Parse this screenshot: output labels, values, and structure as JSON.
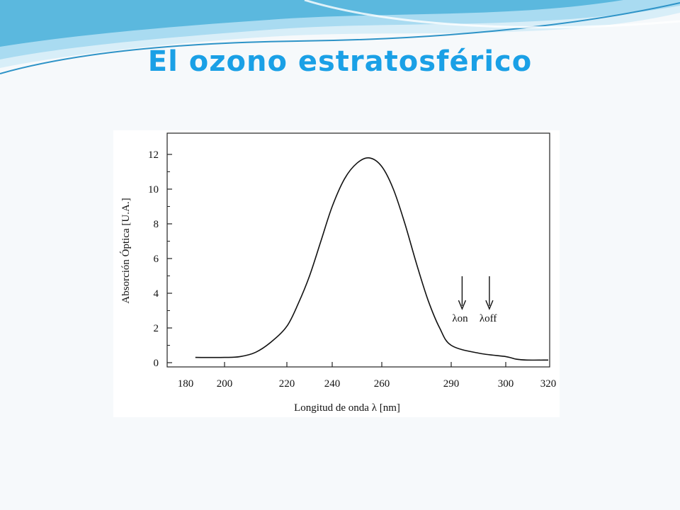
{
  "slide": {
    "title": "El ozono estratosférico",
    "title_color": "#1aa0e6",
    "background_color": "#f6f9fb",
    "wave_colors": [
      "#d8eef8",
      "#a9dbf1",
      "#5bb8de",
      "#2d93c7"
    ]
  },
  "chart_data": {
    "type": "line",
    "title": "",
    "xlabel": "Longitud de onda",
    "xlabel_unit": "[nm]",
    "ylabel": "Absorción Óptica [U.A.]",
    "x_ticks": [
      "180",
      "200",
      "220",
      "240",
      "260",
      "290",
      "300",
      "320"
    ],
    "y_ticks": [
      "0",
      "2",
      "4",
      "6",
      "8",
      "10",
      "12"
    ],
    "ylim": [
      0,
      13
    ],
    "grid": false,
    "line_color": "#111111",
    "series": [
      {
        "x": [
          185,
          200,
          205,
          210,
          215,
          220,
          225,
          230,
          235,
          240,
          245,
          250,
          255,
          260,
          265,
          270,
          275,
          280,
          285,
          290,
          295,
          300,
          305,
          310,
          320
        ],
        "y": [
          0.3,
          0.3,
          0.35,
          0.6,
          1.2,
          2.1,
          3.4,
          5.0,
          7.0,
          9.0,
          10.6,
          11.5,
          11.8,
          11.3,
          10.0,
          8.0,
          5.7,
          3.6,
          2.0,
          1.0,
          0.55,
          0.35,
          0.2,
          0.15,
          0.15
        ]
      }
    ],
    "markers": [
      {
        "label": "on",
        "x": 292
      },
      {
        "label": "off",
        "x": 297
      }
    ]
  }
}
